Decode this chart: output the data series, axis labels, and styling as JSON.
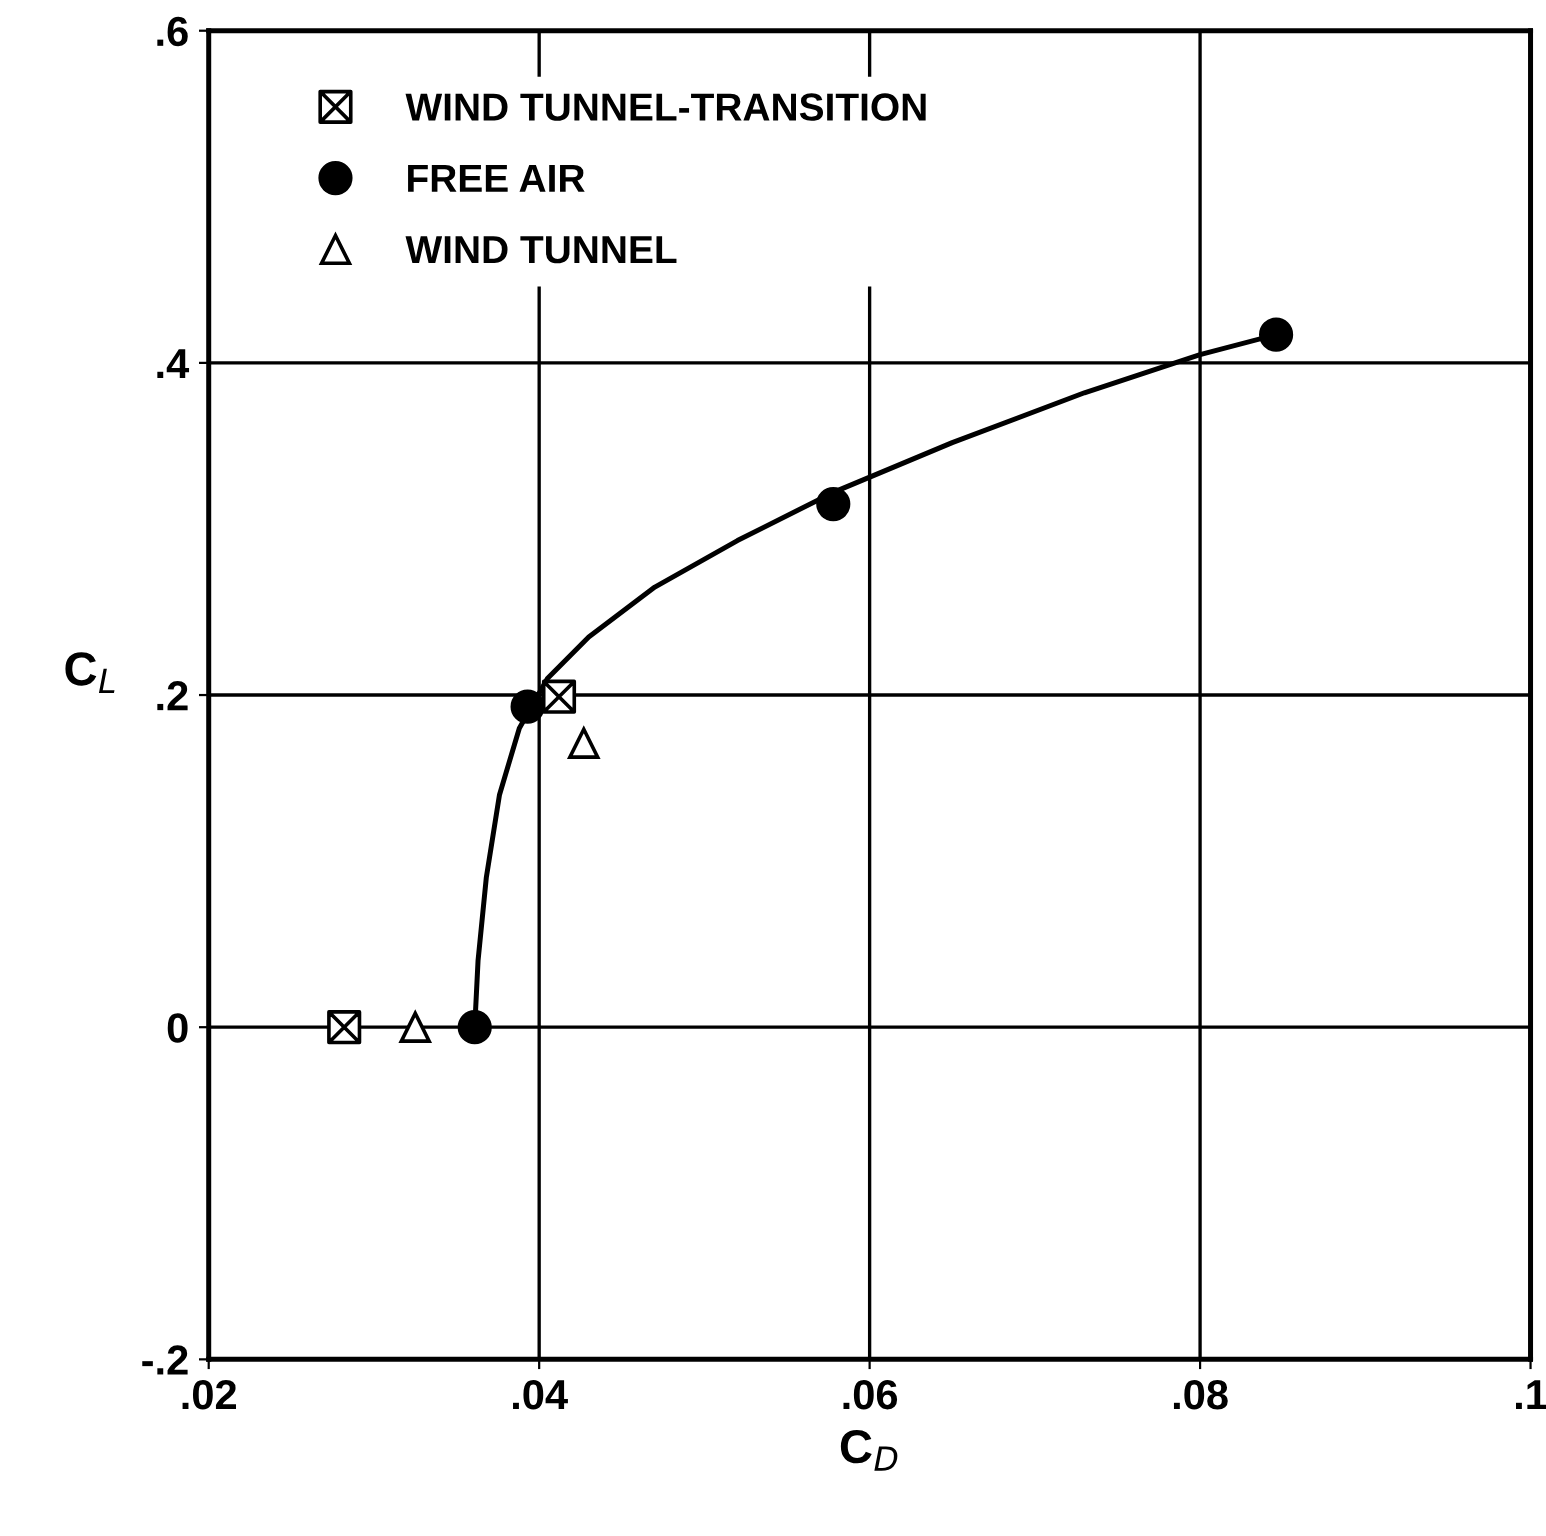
{
  "chart_data": {
    "type": "scatter",
    "xlabel": "C$_{D}$",
    "ylabel": "C$_{L}$",
    "xlim": [
      0.02,
      0.1
    ],
    "ylim": [
      -0.2,
      0.6
    ],
    "xticks": [
      {
        "value": 0.02,
        "label": ".02"
      },
      {
        "value": 0.04,
        "label": ".04"
      },
      {
        "value": 0.06,
        "label": ".06"
      },
      {
        "value": 0.08,
        "label": ".08"
      },
      {
        "value": 0.1,
        "label": ".1"
      }
    ],
    "yticks": [
      {
        "value": -0.2,
        "label": "-.2"
      },
      {
        "value": 0,
        "label": "0"
      },
      {
        "value": 0.2,
        "label": ".2"
      },
      {
        "value": 0.4,
        "label": ".4"
      },
      {
        "value": 0.6,
        "label": ".6"
      }
    ],
    "grid": true,
    "legend": "top left",
    "series": [
      {
        "name": "WIND TUNNEL-TRANSITION",
        "color": "#000000",
        "marker": "cross",
        "x": [
          0.0282,
          0.0412
        ],
        "values": [
          0,
          0.199
        ]
      },
      {
        "name": "FREE AIR",
        "color": "#000000",
        "marker": "circle",
        "x": [
          0.0361,
          0.0393,
          0.0578,
          0.0846
        ],
        "values": [
          0,
          0.193,
          0.315,
          0.417
        ]
      },
      {
        "name": "WIND TUNNEL",
        "color": "#000000",
        "marker": "triangle",
        "x": [
          0.0325,
          0.0427
        ],
        "values": [
          0,
          0.171
        ]
      },
      {
        "type": "line",
        "color": "#000000",
        "marker": "none",
        "x": [
          0.0361,
          0.0363,
          0.0368,
          0.0376,
          0.0388,
          0.0405,
          0.043,
          0.047,
          0.052,
          0.0578,
          0.065,
          0.073,
          0.08,
          0.0846
        ],
        "values": [
          0,
          0.04,
          0.09,
          0.14,
          0.18,
          0.21,
          0.235,
          0.265,
          0.293,
          0.322,
          0.352,
          0.382,
          0.405,
          0.417
        ]
      }
    ]
  }
}
